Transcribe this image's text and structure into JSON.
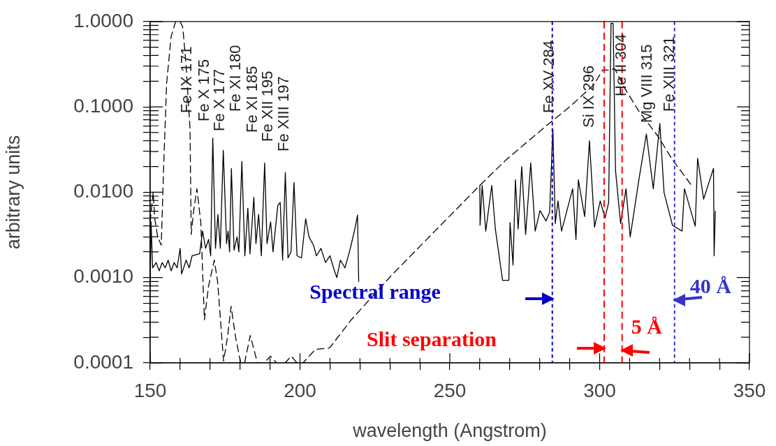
{
  "chart_data": {
    "type": "line",
    "xlabel": "wavelength (Angstrom)",
    "ylabel": "arbitrary units",
    "log": "y",
    "xlim": [
      150,
      350
    ],
    "ylim": [
      0.0001,
      1
    ],
    "xticks": [
      150,
      {
        "value": 160,
        "label": null
      },
      {
        "value": 170,
        "label": null
      },
      {
        "value": 180,
        "label": null
      },
      {
        "value": 190,
        "label": null
      },
      200,
      {
        "value": 210,
        "label": null
      },
      {
        "value": 220,
        "label": null
      },
      {
        "value": 230,
        "label": null
      },
      {
        "value": 240,
        "label": null
      },
      250,
      {
        "value": 260,
        "label": null
      },
      {
        "value": 270,
        "label": null
      },
      {
        "value": 280,
        "label": null
      },
      {
        "value": 290,
        "label": null
      },
      300,
      {
        "value": 310,
        "label": null
      },
      {
        "value": 320,
        "label": null
      },
      {
        "value": 330,
        "label": null
      },
      {
        "value": 340,
        "label": null
      },
      350
    ],
    "yticks": [
      {
        "value": 0.0001,
        "label": "0.0001"
      },
      {
        "value": 0.0002,
        "label": null
      },
      {
        "value": 0.0003,
        "label": null
      },
      {
        "value": 0.0004,
        "label": null
      },
      {
        "value": 0.0005,
        "label": null
      },
      {
        "value": 0.0006,
        "label": null
      },
      {
        "value": 0.0007,
        "label": null
      },
      {
        "value": 0.0008,
        "label": null
      },
      {
        "value": 0.0009,
        "label": null
      },
      {
        "value": 0.001,
        "label": "0.0010"
      },
      {
        "value": 0.002,
        "label": null
      },
      {
        "value": 0.003,
        "label": null
      },
      {
        "value": 0.004,
        "label": null
      },
      {
        "value": 0.005,
        "label": null
      },
      {
        "value": 0.006,
        "label": null
      },
      {
        "value": 0.007,
        "label": null
      },
      {
        "value": 0.008,
        "label": null
      },
      {
        "value": 0.009,
        "label": null
      },
      {
        "value": 0.01,
        "label": "0.0100"
      },
      {
        "value": 0.02,
        "label": null
      },
      {
        "value": 0.03,
        "label": null
      },
      {
        "value": 0.04,
        "label": null
      },
      {
        "value": 0.05,
        "label": null
      },
      {
        "value": 0.06,
        "label": null
      },
      {
        "value": 0.07,
        "label": null
      },
      {
        "value": 0.08,
        "label": null
      },
      {
        "value": 0.09,
        "label": null
      },
      {
        "value": 0.1,
        "label": "0.1000"
      },
      {
        "value": 0.2,
        "label": null
      },
      {
        "value": 0.3,
        "label": null
      },
      {
        "value": 0.4,
        "label": null
      },
      {
        "value": 0.5,
        "label": null
      },
      {
        "value": 0.6,
        "label": null
      },
      {
        "value": 0.7,
        "label": null
      },
      {
        "value": 0.8,
        "label": null
      },
      {
        "value": 0.9,
        "label": null
      },
      {
        "value": 1,
        "label": "1.0000"
      }
    ],
    "grid": false,
    "legend": false,
    "series": [
      {
        "color": "#000000",
        "line_style": "solid",
        "x": [
          150,
          150.3,
          150.8,
          152,
          153,
          154,
          155,
          156,
          157,
          158,
          159,
          160,
          160.5,
          162,
          163,
          164,
          166.5,
          167.5,
          168.5,
          169.5,
          170.2,
          170.9,
          171.8,
          172.6,
          173.4,
          174.4,
          175.5,
          176,
          176.5,
          177.1,
          178,
          179,
          179.6,
          180.6,
          181.6,
          182.6,
          183.3,
          184.6,
          185.3,
          186.2,
          187.1,
          188.2,
          189,
          190.2,
          191,
          192.6,
          193.4,
          194.2,
          195.1,
          196,
          197,
          198,
          199,
          200.5,
          201.9,
          203,
          204.5,
          205.5,
          207,
          208.5,
          210,
          211.5,
          212.3,
          213.5,
          215,
          216.5,
          217.5,
          218.5,
          219.2,
          219.6,
          240,
          260,
          260.1,
          260.8,
          262,
          264,
          265.2,
          267.6,
          269.7,
          270.1,
          271.1,
          271.9,
          272.8,
          274,
          275.3,
          277,
          278.5,
          280.1,
          282.1,
          283.3,
          284.4,
          285.2,
          286.1,
          287.3,
          291,
          292.1,
          292.9,
          295,
          296.6,
          298.3,
          300.2,
          301.8,
          303,
          303.8,
          304.5,
          305.3,
          307,
          308.8,
          310.2,
          313.1,
          315.6,
          317.9,
          320.1,
          321.5,
          324.3,
          327.5,
          328.3,
          331.9,
          332.7,
          334.7,
          338,
          338.2,
          338.6
        ],
        "values": [
          0.0008,
          0.0045,
          0.0013,
          0.0015,
          0.0012,
          0.0015,
          0.0013,
          0.0016,
          0.0012,
          0.0015,
          0.0013,
          0.0022,
          0.0011,
          0.0016,
          0.0013,
          0.0018,
          0.0019,
          0.0035,
          0.0022,
          0.0028,
          0.0018,
          0.043,
          0.0022,
          0.0055,
          0.0022,
          0.031,
          0.0025,
          0.0035,
          0.002,
          0.019,
          0.0021,
          0.003,
          0.002,
          0.023,
          0.0018,
          0.0065,
          0.0019,
          0.0087,
          0.0025,
          0.0055,
          0.0018,
          0.022,
          0.0025,
          0.0045,
          0.002,
          0.007,
          0.0076,
          0.0016,
          0.017,
          0.0017,
          0.002,
          0.013,
          0.0018,
          0.0017,
          0.0049,
          0.003,
          0.0024,
          0.0018,
          0.0022,
          0.0015,
          0.0018,
          0.0012,
          0.001,
          0.0016,
          0.0013,
          0.002,
          0.0028,
          0.004,
          0.0054,
          0.0009,
          null,
          0.012,
          0.0041,
          0.012,
          0.0035,
          0.012,
          0.0037,
          0.00093,
          0.00093,
          0.0044,
          0.0014,
          0.014,
          0.0037,
          0.02,
          0.0032,
          0.022,
          0.0035,
          0.0061,
          0.0046,
          0.0058,
          0.055,
          0.0043,
          0.0079,
          0.0035,
          0.011,
          0.0028,
          0.014,
          0.0052,
          0.04,
          0.0039,
          0.0079,
          0.005,
          0.0075,
          0.95,
          0.95,
          0.018,
          0.0043,
          0.011,
          0.003,
          0.014,
          0.048,
          0.011,
          0.064,
          0.0099,
          0.0041,
          0.0035,
          0.011,
          0.004,
          0.025,
          0.0083,
          0.019,
          0.0018,
          0.006
        ]
      },
      {
        "color": "#000000",
        "line_style": "dashed",
        "x": [
          150,
          151,
          151.5,
          152.5,
          153.7,
          154.5,
          155.5,
          157,
          158.5,
          160,
          160.9,
          162,
          163.3,
          163.7,
          164.5,
          165.6,
          166.9,
          168.1,
          169.5,
          171.4,
          172.5,
          174.5,
          175.8,
          177,
          178.5,
          180.2,
          181.5,
          183.4,
          185.8,
          188,
          190.2,
          192.2,
          195,
          197.1,
          199,
          201,
          205.1,
          209.9,
          217.1,
          230.4,
          245,
          260,
          268.8,
          281.7,
          290,
          298,
          301,
          303.5,
          305,
          308.6,
          313,
          319.5,
          324.3,
          330.7
        ],
        "values": [
          0.0045,
          0.01,
          0.005,
          0.003,
          0.0024,
          0.02,
          0.19,
          0.67,
          1,
          1,
          0.85,
          0.3,
          0.055,
          0.0032,
          0.006,
          0.011,
          0.0044,
          0.00032,
          0.0008,
          0.0016,
          0.0009,
          0.000105,
          0.0002,
          0.00046,
          0.0002,
          0.0001,
          0.0001,
          0.00021,
          0.0001,
          0.0001,
          0.00012,
          0.0001,
          0.0001,
          0.00012,
          0.0001,
          0.0001,
          0.000144,
          0.00015,
          0.00032,
          0.00105,
          0.0035,
          0.012,
          0.024,
          0.058,
          0.1,
          0.18,
          0.27,
          0.27,
          0.28,
          0.16,
          0.09,
          0.045,
          0.024,
          0.012
        ]
      }
    ],
    "ref_lines": [
      {
        "axis": "x",
        "value": 284.2,
        "color": "#0000cc",
        "line_style": "dotted"
      },
      {
        "axis": "x",
        "value": 325,
        "color": "#3333cc",
        "line_style": "dotted"
      },
      {
        "axis": "x",
        "value": 301.5,
        "color": "#ff0000",
        "line_style": "dashed"
      },
      {
        "axis": "x",
        "value": 307.5,
        "color": "#ff0000",
        "line_style": "dashed"
      }
    ],
    "annotations": [
      "Fe IX 171",
      "Fe X 175",
      "Fe X 177",
      "Fe XI 180",
      "Fe XI 185",
      "Fe XII 195",
      "Fe XIII 197",
      "Fe XV 284",
      "Si IX 296",
      "He II 304",
      "Mg VIII 315",
      "Fe XIII 321",
      "Spectral range",
      "40 Å",
      "Slit separation",
      "5 Å"
    ]
  }
}
